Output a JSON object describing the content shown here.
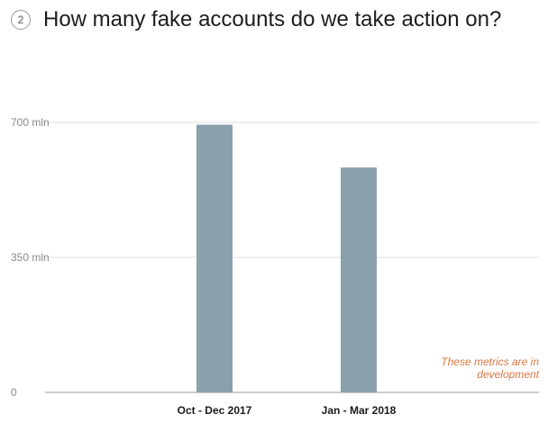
{
  "header": {
    "step_number": "2",
    "title": "How many fake accounts do we take action on?"
  },
  "note": "These metrics are in development",
  "colors": {
    "bar": "#8aa0ab",
    "gridline": "#dcdcdc",
    "axis": "#9a9a9a",
    "note": "#d9773f"
  },
  "chart_data": {
    "type": "bar",
    "title": "How many fake accounts do we take action on?",
    "xlabel": "",
    "ylabel": "",
    "categories": [
      "Oct - Dec 2017",
      "Jan - Mar 2018"
    ],
    "values": [
      694,
      583
    ],
    "unit": "mln",
    "ylim": [
      0,
      700
    ],
    "yticks": [
      {
        "value": 0,
        "label": "0"
      },
      {
        "value": 350,
        "label": "350 mln"
      },
      {
        "value": 700,
        "label": "700 mln"
      }
    ],
    "grid": true,
    "legend": "none"
  }
}
